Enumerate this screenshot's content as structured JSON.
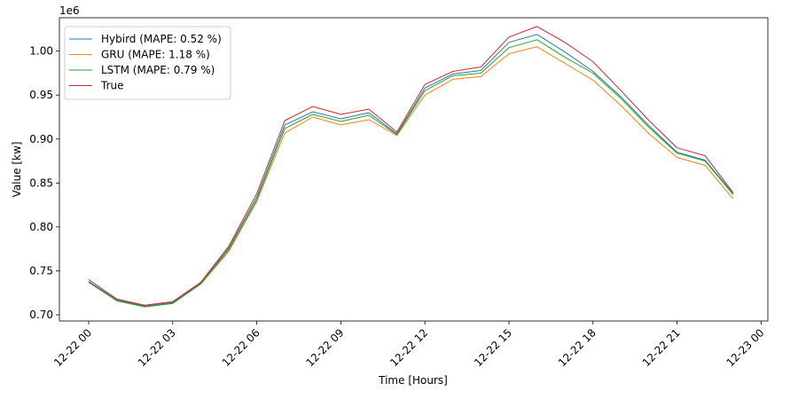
{
  "chart_data": {
    "type": "line",
    "xlabel": "Time [Hours]",
    "ylabel": "Value [kw]",
    "y_offset_label": "1e6",
    "x": [
      "2022-12-22 00:00",
      "2022-12-22 01:00",
      "2022-12-22 02:00",
      "2022-12-22 03:00",
      "2022-12-22 04:00",
      "2022-12-22 05:00",
      "2022-12-22 06:00",
      "2022-12-22 07:00",
      "2022-12-22 08:00",
      "2022-12-22 09:00",
      "2022-12-22 10:00",
      "2022-12-22 11:00",
      "2022-12-22 12:00",
      "2022-12-22 13:00",
      "2022-12-22 14:00",
      "2022-12-22 15:00",
      "2022-12-22 16:00",
      "2022-12-22 17:00",
      "2022-12-22 18:00",
      "2022-12-22 19:00",
      "2022-12-22 20:00",
      "2022-12-22 21:00",
      "2022-12-22 22:00",
      "2022-12-22 23:00"
    ],
    "x_ticks": [
      "12-22 00",
      "12-22 03",
      "12-22 06",
      "12-22 09",
      "12-22 12",
      "12-22 15",
      "12-22 18",
      "12-22 21",
      "12-23 00"
    ],
    "y_ticks": [
      "0.70",
      "0.75",
      "0.80",
      "0.85",
      "0.90",
      "0.95",
      "1.00"
    ],
    "ylim": [
      0.693,
      1.038
    ],
    "grid": false,
    "legend_position": "upper left",
    "series": [
      {
        "name": "Hybird (MAPE: 0.52 %)",
        "color": "#1f77b4",
        "values": [
          0.738,
          0.717,
          0.71,
          0.714,
          0.736,
          0.776,
          0.834,
          0.916,
          0.931,
          0.923,
          0.93,
          0.906,
          0.958,
          0.974,
          0.978,
          1.01,
          1.019,
          0.999,
          0.977,
          0.948,
          0.915,
          0.885,
          0.876,
          0.838
        ]
      },
      {
        "name": "GRU (MAPE: 1.18 %)",
        "color": "#ff7f0e",
        "values": [
          0.737,
          0.716,
          0.709,
          0.713,
          0.735,
          0.772,
          0.829,
          0.907,
          0.925,
          0.916,
          0.922,
          0.904,
          0.95,
          0.968,
          0.971,
          0.997,
          1.005,
          0.986,
          0.967,
          0.938,
          0.906,
          0.879,
          0.87,
          0.832
        ]
      },
      {
        "name": "LSTM (MAPE: 0.79 %)",
        "color": "#2ca02c",
        "values": [
          0.737,
          0.716,
          0.709,
          0.713,
          0.735,
          0.774,
          0.831,
          0.912,
          0.928,
          0.92,
          0.927,
          0.905,
          0.955,
          0.972,
          0.975,
          1.004,
          1.013,
          0.993,
          0.975,
          0.946,
          0.913,
          0.884,
          0.875,
          0.837
        ]
      },
      {
        "name": "True",
        "color": "#d62728",
        "values": [
          0.74,
          0.718,
          0.711,
          0.715,
          0.737,
          0.778,
          0.838,
          0.921,
          0.937,
          0.928,
          0.934,
          0.908,
          0.962,
          0.977,
          0.982,
          1.016,
          1.028,
          1.01,
          0.988,
          0.955,
          0.921,
          0.89,
          0.881,
          0.839
        ]
      }
    ]
  }
}
